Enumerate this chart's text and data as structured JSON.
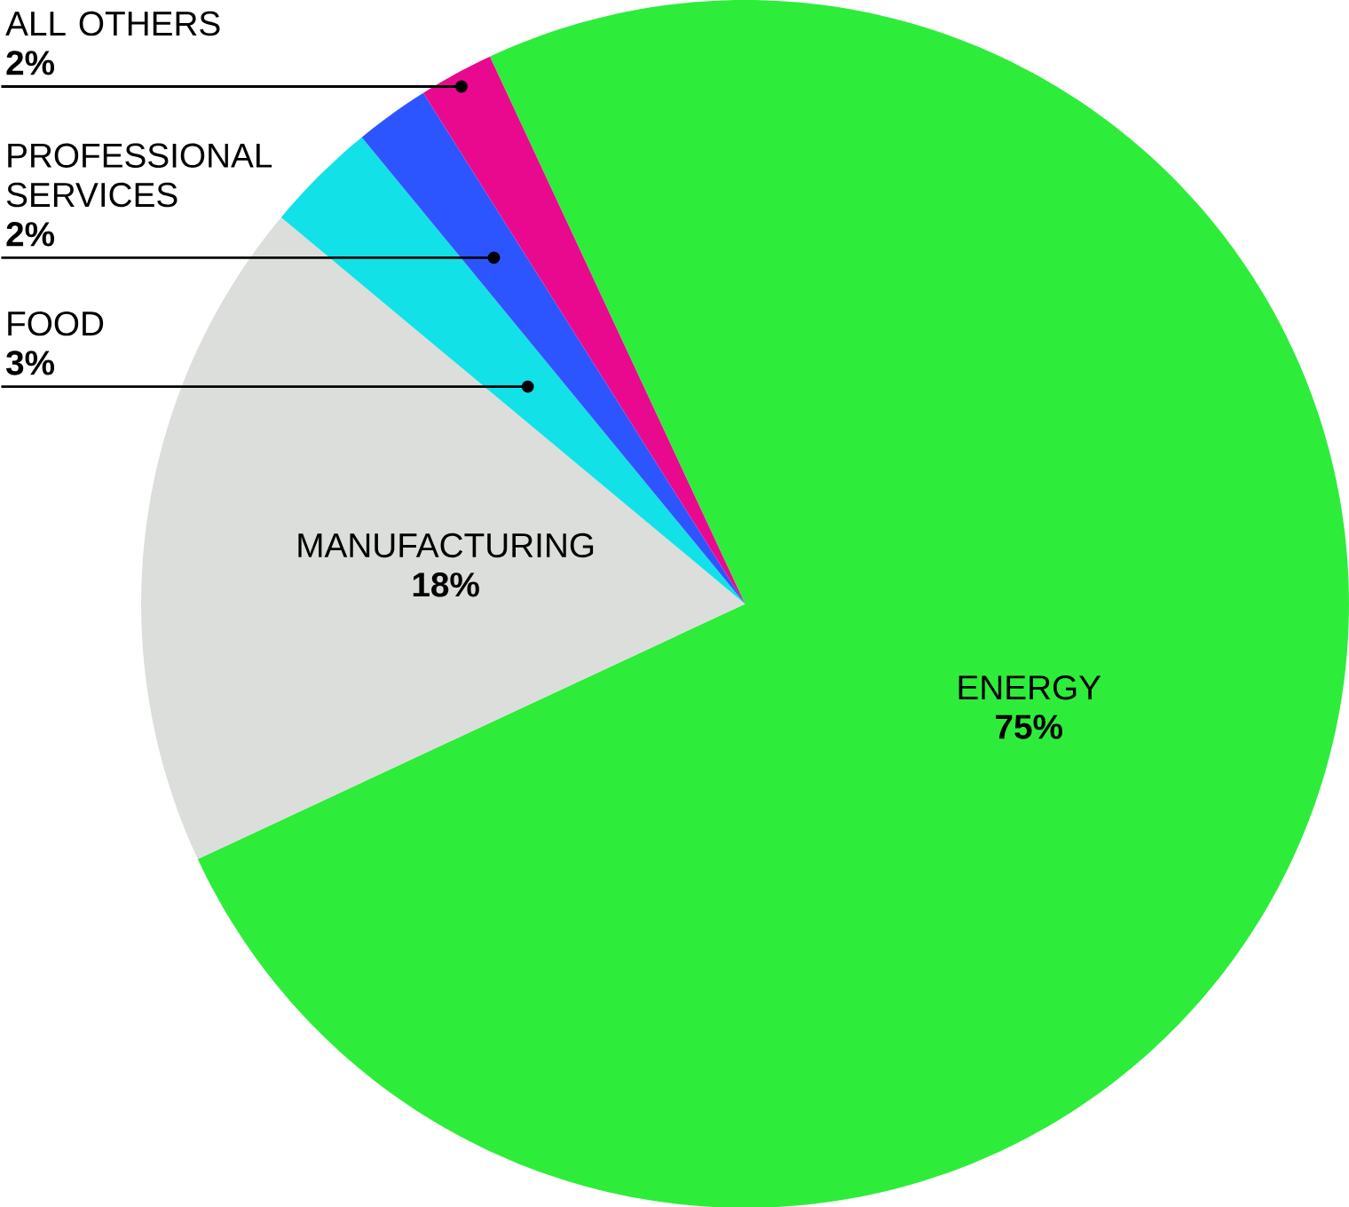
{
  "chart_data": {
    "type": "pie",
    "categories": [
      "ENERGY",
      "MANUFACTURING",
      "FOOD",
      "PROFESSIONAL SERVICES",
      "ALL OTHERS"
    ],
    "values": [
      75,
      18,
      3,
      2,
      2
    ],
    "value_labels": [
      "75%",
      "18%",
      "3%",
      "2%",
      "2%"
    ],
    "colors": [
      "#2ded3a",
      "#dcdedb",
      "#13e1e8",
      "#2d55ff",
      "#e8098e"
    ]
  }
}
